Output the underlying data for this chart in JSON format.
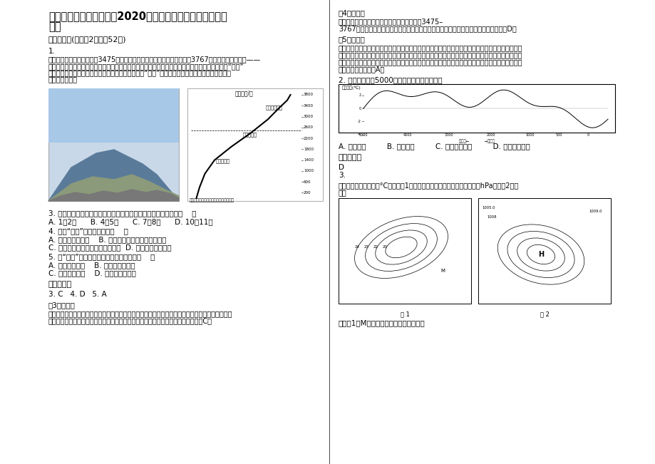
{
  "bg_color": "#ffffff",
  "title_line1": "湖北省黄石市大冶镇中学2020年高三地理上学期期末试题含",
  "title_line2": "解析",
  "section1": "一、选择题(每小题2分，共52分)",
  "q1_num": "1.",
  "q1_line1": "从泰岭第二高峰鳌山（海拔3475米）沿山脊徒步至第一高峰太白山（海拔3767米）的户外徒步线路——",
  "q1_line2": "鳌太线，以山水形胜而出名。但其积雪多、难度大、危险性高对户外爱好者提出挑战，尤其以称为“石海”",
  "q1_line3": "一段的路段最难，基本上是在碎石上攀爬。下图示意“石海”景观与秦岭太白山北坡植被分布，据此",
  "q1_line4": "完成下列各题。",
  "q3": "3. 从安全角度考虑，一年中最适合在鳌太线上徒步旅行的时期是（    ）",
  "q3_opts": "A. 1、2月      B. 4、5月      C. 7、8月      D. 10、11月",
  "q4": "4. 推测“石海”出现的位置在（    ）",
  "q4_a": "A. 落叶阔叶林之下    B. 落叶阔叶林与针阔混交林之间",
  "q4_b": "C. 针阔混交林与高山灌丛草甸之间  D. 高山灌丛草甸之上",
  "q5": "5. 与“石海”形成过程关系最密切的因素是（    ）",
  "q5_a": "A. 气温的日变化    B. 气温的季节变化",
  "q5_b": "C. 降水的日变化    D. 降水的季节变化",
  "ans_title": "参考答案：",
  "ans_135": "3. C   4. D   5. A",
  "exp3_title": "【3题详解】",
  "exp3_line1": "由材料可知，鳌太线旅游的最大威胁是来自于积雪，从安全性角度考虑，夏季气温高，积雪较薄，有",
  "exp3_line2": "利于徒步旅行，其他季节积雪厚度大，且山顶气温低，气候寒冷，容易冻伤等，故选C。",
  "r_exp4_title": "【4题详解】",
  "r_exp4_line1": "石海出现于穿越鳌太线过程中，其海拔高度在3475–",
  "r_exp4_line2": "3767米之间，对照太白山北坡植被垂直分布图，石海应当位于高山灌丛草甸之上，故选D。",
  "r_exp5_title": "【5题详解】",
  "r_exp5_line1": "石海存在裂隙，在水分冻结膨胀情况下，岩石破裂成很多小块，或者因温度变化，组成岩石的矿物不",
  "r_exp5_line2": "均一，热涨冷缩，造成岩石破裂。在这种情况下就会产生大量大小不等的棱角状岩块及岩屑，在地形",
  "r_exp5_line3": "平缓的条件下，大多岩屑在原地残留下来，形成碎石覆盖地面，这就是石海。所以石海的形成与气温",
  "r_exp5_line4": "的日变化有关，故选A。",
  "q2_text": "2. 下图反映我国5000年气温变化的突出特点是",
  "q2_opts": "A. 持续下降         B. 持续上升         C. 先下降后上升         D. 冷暖相互交替",
  "r_ans_title": "参考答案：",
  "r_ans_d": "D",
  "r_ans_3": "3.",
  "q3_intro1": "读某大陆某月等温线（°C）图（图1）和该月某日海平面等压线图（单位：hPa）（图2），",
  "q3_intro2": "回答",
  "fig1_cap": "图 1",
  "fig2_cap": "图 2",
  "q_last": "影响图1中M海域等温线弯曲的主要因素是",
  "chart_title": "海拔高度/米",
  "veg1": "高山灌丛草甸",
  "veg2": "针阔混交林",
  "veg3": "落叶阔叶林",
  "chart_footer": "秦岭太白山北坡垂直地带植被垂直分布图",
  "ytick_label": "气温变化(℃)",
  "xtick_label": "公元前←            →公元后"
}
